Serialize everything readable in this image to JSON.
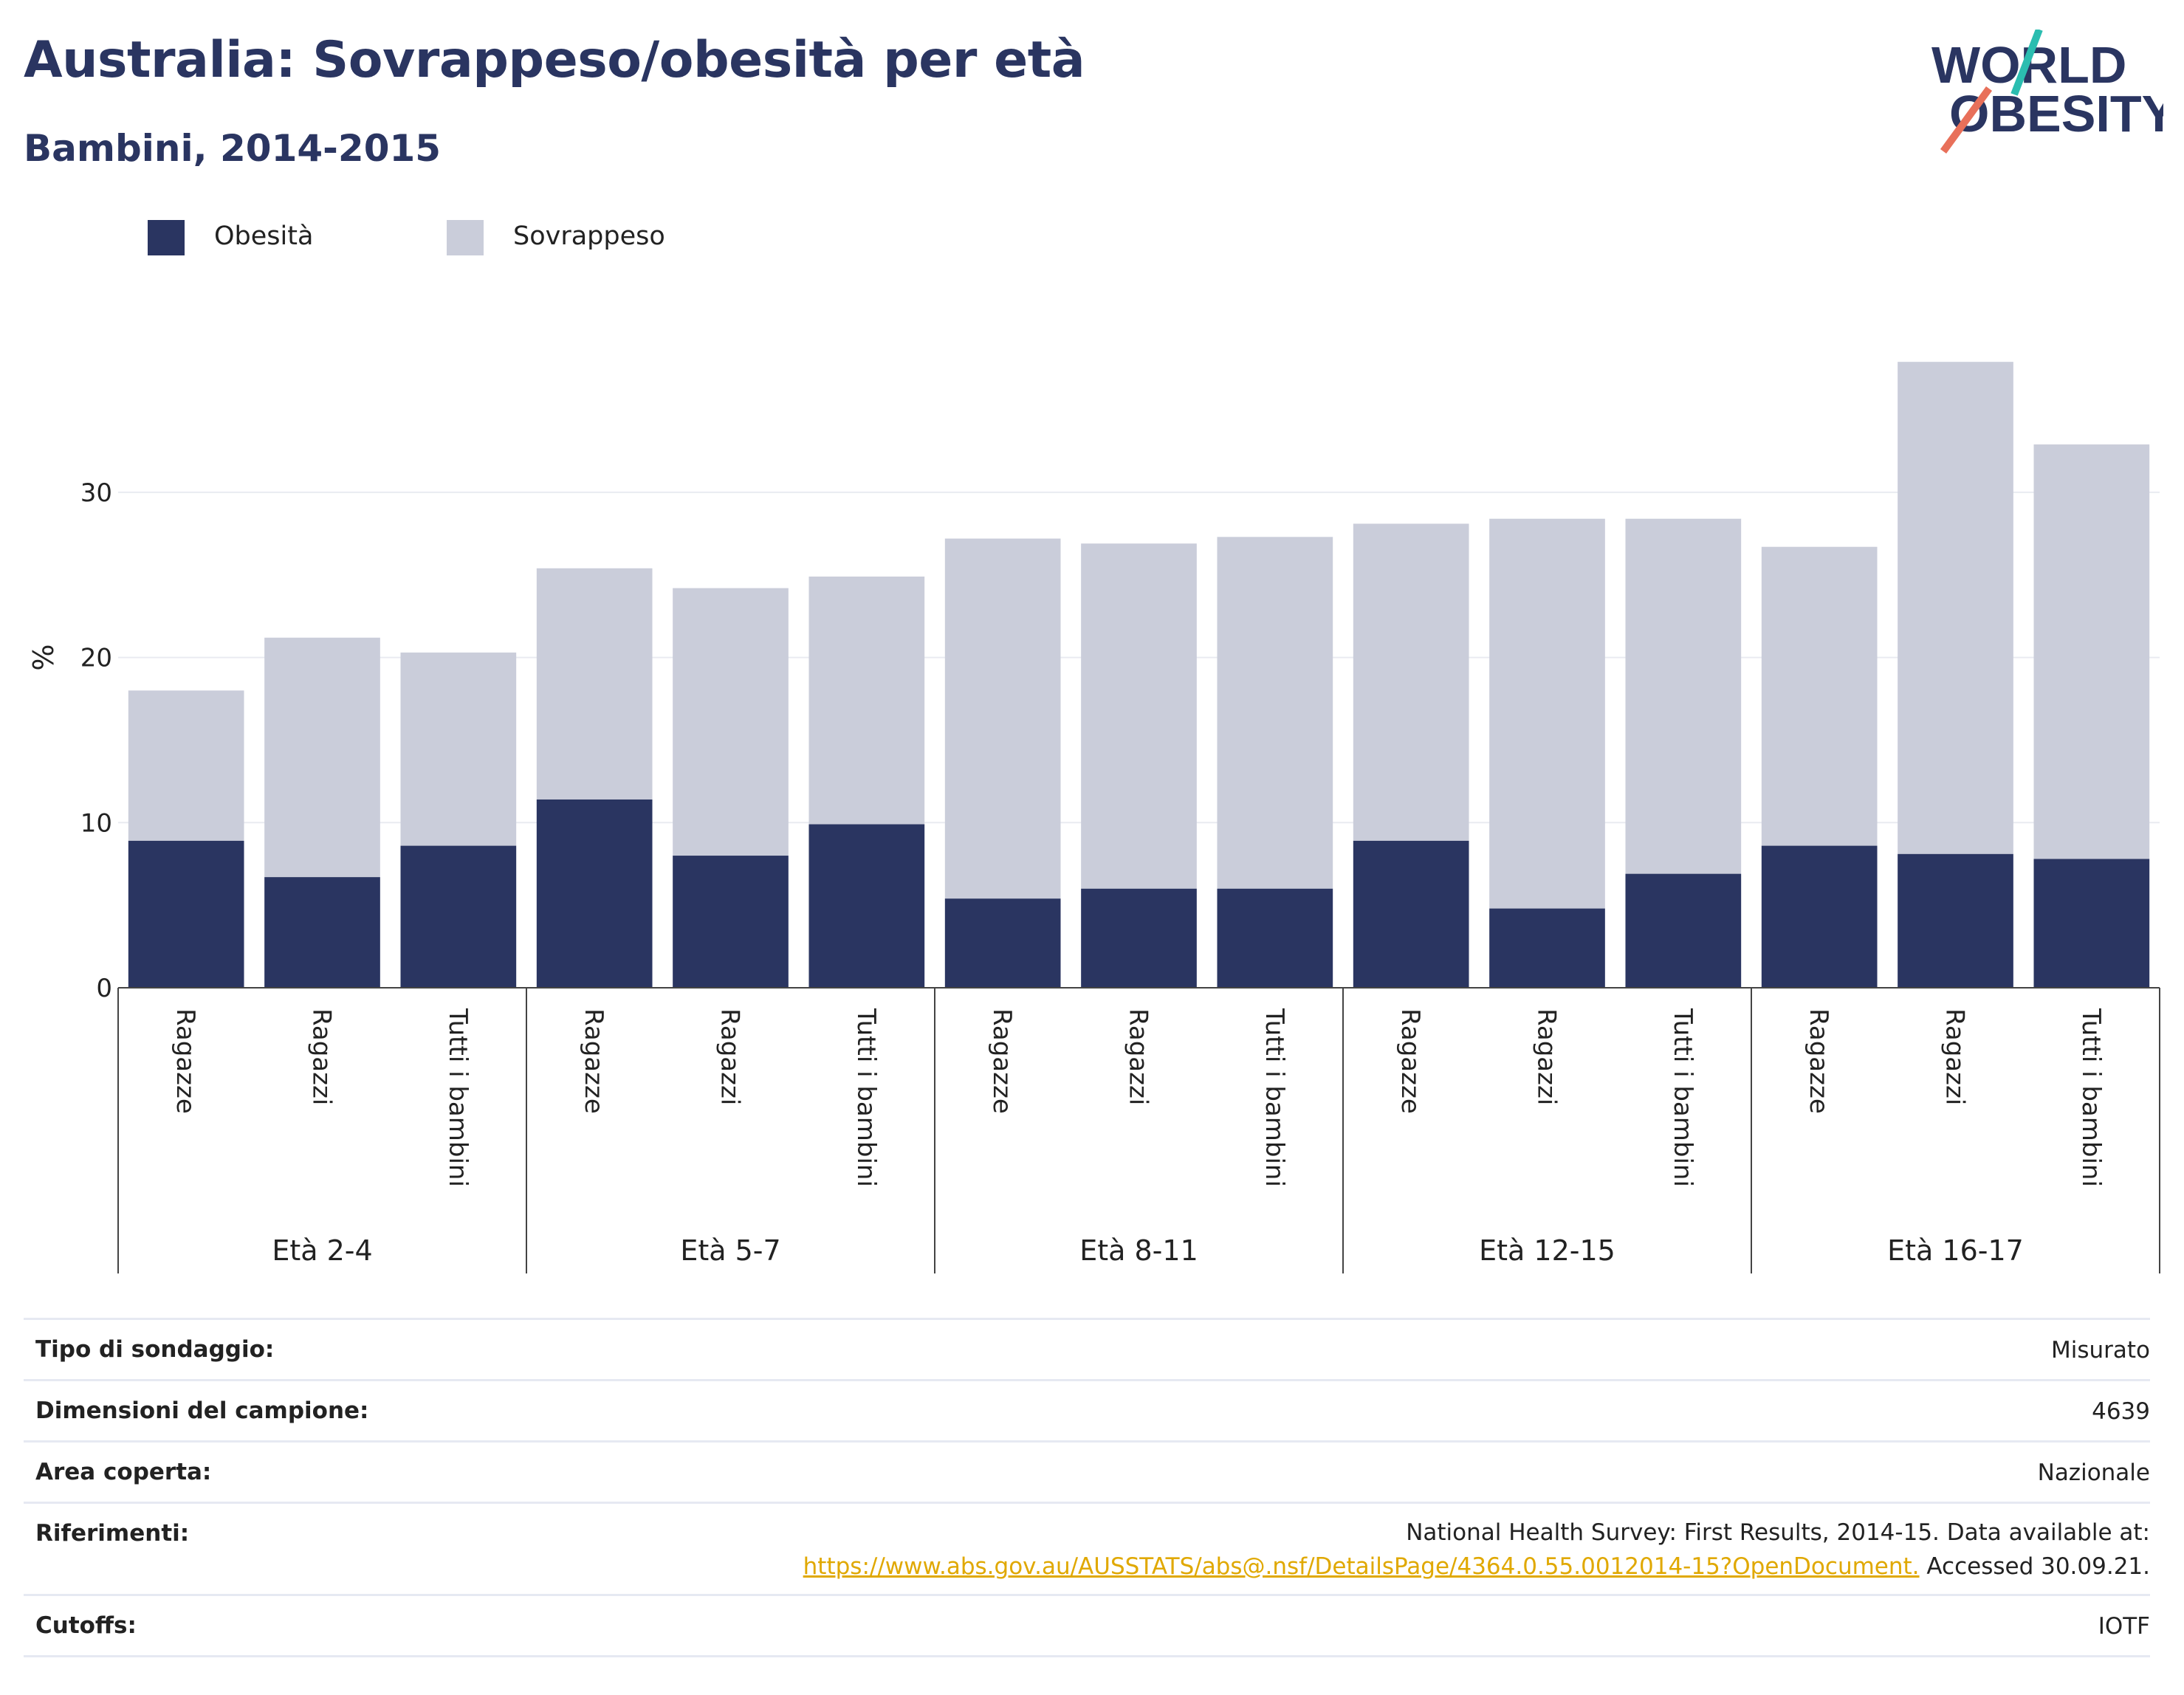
{
  "header": {
    "title": "Australia: Sovrappeso/obesità per età",
    "subtitle": "Bambini, 2014-2015"
  },
  "logo": {
    "line1": "WORLD",
    "line2": "OBESITY",
    "accent_colors": [
      "#2bbdb0",
      "#e8705a"
    ],
    "text_color": "#2a3561"
  },
  "chart_data": {
    "type": "bar",
    "stacked": true,
    "ylabel": "%",
    "xlabel": "",
    "ylim": [
      0,
      40
    ],
    "yticks": [
      0,
      10,
      20,
      30
    ],
    "grid": true,
    "legend_position": "top-left",
    "groups": [
      {
        "label": "Età 2-4",
        "categories": [
          "Ragazze",
          "Ragazzi",
          "Tutti i bambini"
        ]
      },
      {
        "label": "Età 5-7",
        "categories": [
          "Ragazze",
          "Ragazzi",
          "Tutti i bambini"
        ]
      },
      {
        "label": "Età 8-11",
        "categories": [
          "Ragazze",
          "Ragazzi",
          "Tutti i bambini"
        ]
      },
      {
        "label": "Età 12-15",
        "categories": [
          "Ragazze",
          "Ragazzi",
          "Tutti i bambini"
        ]
      },
      {
        "label": "Età 16-17",
        "categories": [
          "Ragazze",
          "Ragazzi",
          "Tutti i bambini"
        ]
      }
    ],
    "series": [
      {
        "name": "Obesità",
        "color": "#2a3561",
        "values": [
          8.9,
          6.7,
          8.6,
          11.4,
          8.0,
          9.9,
          5.4,
          6.0,
          6.0,
          8.9,
          4.8,
          6.9,
          8.6,
          8.1,
          7.8
        ]
      },
      {
        "name": "Sovrappeso",
        "color": "#cacdda",
        "values": [
          9.1,
          14.5,
          11.7,
          14.0,
          16.2,
          15.0,
          21.8,
          20.9,
          21.3,
          19.2,
          23.6,
          21.5,
          18.1,
          29.8,
          25.1
        ]
      }
    ]
  },
  "info_table": [
    {
      "key": "Tipo di sondaggio:",
      "value": "Misurato"
    },
    {
      "key": "Dimensioni del campione:",
      "value": "4639"
    },
    {
      "key": "Area coperta:",
      "value": "Nazionale"
    },
    {
      "key": "Riferimenti:",
      "value_line1": "National Health Survey: First Results, 2014-15. Data available at:",
      "link": "https://www.abs.gov.au/AUSSTATS/abs@.nsf/DetailsPage/4364.0.55.0012014-15?OpenDocument.",
      "value_suffix": " Accessed 30.09.21."
    },
    {
      "key": "Cutoffs:",
      "value": "IOTF"
    }
  ]
}
